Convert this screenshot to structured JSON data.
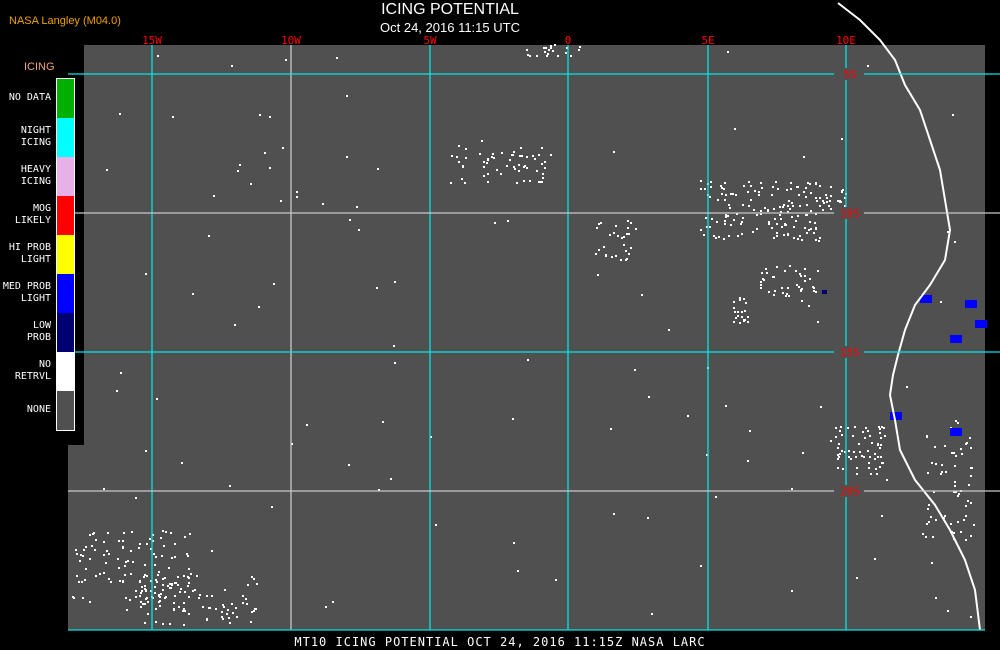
{
  "header": {
    "credit": "NASA Langley (M04.0)",
    "title": "ICING POTENTIAL",
    "subtitle": "Oct 24, 2016 11:15 UTC"
  },
  "map": {
    "longitude_labels": [
      "15W",
      "10W",
      "5W",
      "0",
      "5E",
      "10E"
    ],
    "latitude_labels": [
      "5S",
      "10S",
      "15S",
      "20S"
    ],
    "grid_color": "#00e5e5",
    "background_color": "#505050"
  },
  "legend": {
    "title": "ICING",
    "items": [
      {
        "label": "NO DATA",
        "color": "#00b000"
      },
      {
        "label": "NIGHT\nICING",
        "color": "#00ffff"
      },
      {
        "label": "HEAVY\nICING",
        "color": "#e8b0e8"
      },
      {
        "label": "MOG\nLIKELY",
        "color": "#ff0000"
      },
      {
        "label": "HI PROB\nLIGHT",
        "color": "#ffff00"
      },
      {
        "label": "MED PROB\nLIGHT",
        "color": "#0000ff"
      },
      {
        "label": "LOW\nPROB",
        "color": "#000070"
      },
      {
        "label": "NO\nRETRVL",
        "color": "#ffffff"
      },
      {
        "label": "NONE",
        "color": "#505050"
      }
    ]
  },
  "footer": {
    "text": "MT10   ICING POTENTIAL   OCT 24, 2016 11:15Z   NASA LARC"
  }
}
